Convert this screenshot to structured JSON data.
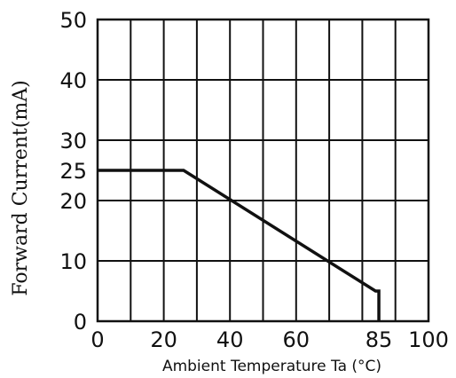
{
  "chart_data": {
    "type": "line",
    "title": "",
    "xlabel": "Ambient Temperature Ta (°C)",
    "ylabel": "Forward Current(mA)",
    "xlim": [
      0,
      100
    ],
    "ylim": [
      0,
      50
    ],
    "grid": true,
    "x_ticks": [
      0,
      20,
      40,
      60,
      85,
      100
    ],
    "x_tick_labels": [
      "0",
      "20",
      "40",
      "60",
      "85",
      "100"
    ],
    "x_grid_step": 10,
    "y_ticks": [
      0,
      10,
      20,
      25,
      30,
      40,
      50
    ],
    "y_tick_labels": [
      "0",
      "10",
      "20",
      "25",
      "30",
      "40",
      "50"
    ],
    "y_grid": [
      0,
      10,
      20,
      30,
      40,
      50
    ],
    "series": [
      {
        "x": [
          0,
          26,
          84,
          85,
          85
        ],
        "y": [
          25,
          25,
          5,
          5,
          0
        ]
      }
    ]
  }
}
